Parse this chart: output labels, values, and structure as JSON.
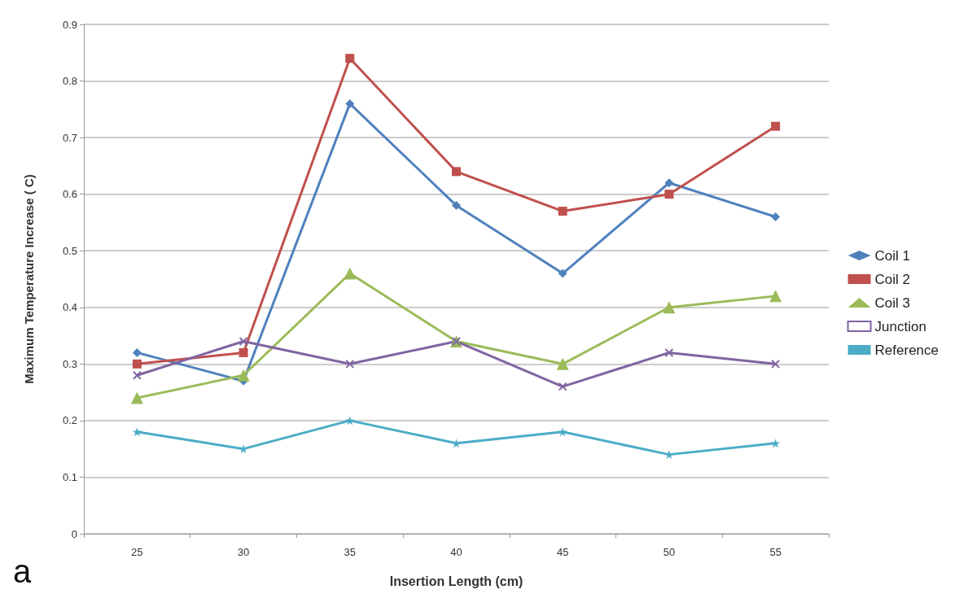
{
  "chart_data": {
    "type": "line",
    "xlabel": "Insertion Length (cm)",
    "ylabel": "Maximum Temperature Increase ( C)",
    "annotations": [
      "a"
    ],
    "categories": [
      "25",
      "30",
      "35",
      "40",
      "45",
      "50",
      "55"
    ],
    "series": [
      {
        "name": "Coil 1",
        "color": "#4f81bd",
        "marker": "diamond",
        "values": [
          0.32,
          0.27,
          0.76,
          0.58,
          0.46,
          0.62,
          0.56
        ]
      },
      {
        "name": "Coil 2",
        "color": "#c0504d",
        "marker": "square",
        "values": [
          0.3,
          0.32,
          0.84,
          0.64,
          0.57,
          0.6,
          0.72
        ]
      },
      {
        "name": "Coil 3",
        "color": "#9bbb59",
        "marker": "triangle",
        "values": [
          0.24,
          0.28,
          0.46,
          0.34,
          0.3,
          0.4,
          0.42
        ]
      },
      {
        "name": "Junction",
        "color": "#8064a2",
        "marker": "cross",
        "values": [
          0.28,
          0.34,
          0.3,
          0.34,
          0.26,
          0.32,
          0.3
        ]
      },
      {
        "name": "Reference",
        "color": "#4bacc6",
        "marker": "star",
        "values": [
          0.18,
          0.15,
          0.2,
          0.16,
          0.18,
          0.14,
          0.16
        ]
      }
    ],
    "ylim": [
      0,
      0.9
    ],
    "yticks": [
      0,
      0.1,
      0.2,
      0.3,
      0.4,
      0.5,
      0.6,
      0.7,
      0.8,
      0.9
    ],
    "grid": "y",
    "legend": "right",
    "line_style": "solid"
  }
}
